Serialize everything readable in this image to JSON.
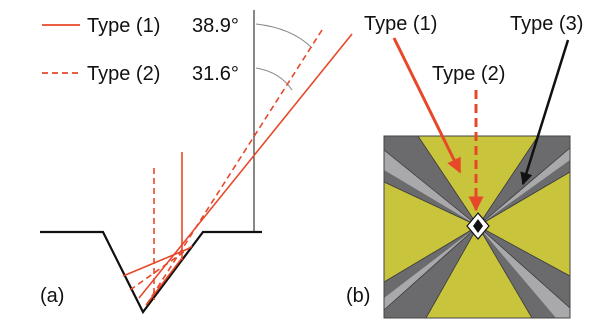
{
  "panel_a": {
    "label": "(a)",
    "legend": [
      {
        "name": "Type (1)",
        "angle": "38.9°",
        "style": "solid"
      },
      {
        "name": "Type (2)",
        "angle": "31.6°",
        "style": "dashed"
      }
    ]
  },
  "panel_b": {
    "label": "(b)",
    "arrows": [
      {
        "name": "Type (1)",
        "color": "#e8482a"
      },
      {
        "name": "Type (2)",
        "color": "#e8482a"
      },
      {
        "name": "Type (3)",
        "color": "#111111"
      }
    ]
  },
  "colors": {
    "ray": "#e8482a",
    "outline": "#111111",
    "arc": "#888888",
    "yellow": "#c8c43c",
    "gray_dark": "#6b6b6d",
    "gray_light": "#a9a9ab"
  }
}
